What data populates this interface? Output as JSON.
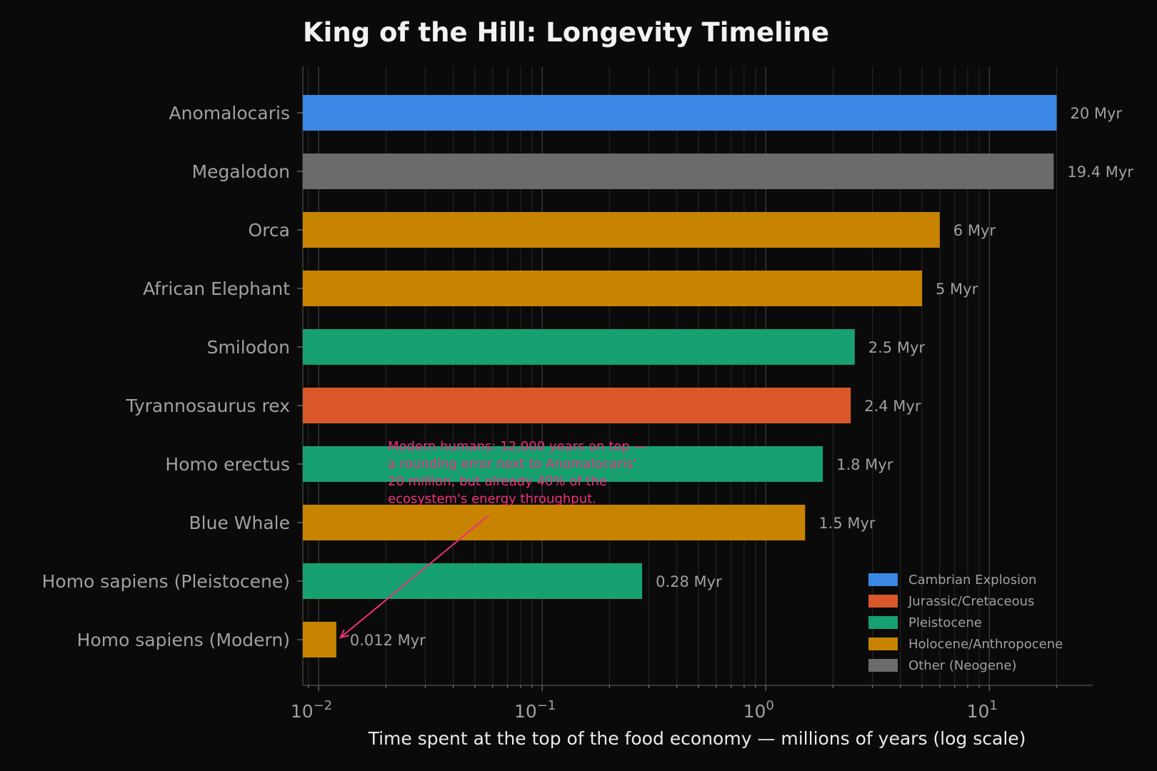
{
  "chart_data": {
    "type": "bar",
    "orientation": "horizontal",
    "title": "King of the Hill: Longevity Timeline",
    "xlabel": "Time spent at the top of the food economy — millions of years (log scale)",
    "ylabel": "",
    "x_scale": "log",
    "xlim": [
      0.0085,
      29
    ],
    "grid": true,
    "legend_position": "bottom-right",
    "categories": [
      "Anomalocaris",
      "Megalodon",
      "Orca",
      "African Elephant",
      "Smilodon",
      "Tyrannosaurus rex",
      "Homo erectus",
      "Blue Whale",
      "Homo sapiens (Pleistocene)",
      "Homo sapiens (Modern)"
    ],
    "values": [
      20,
      19.4,
      6,
      5,
      2.5,
      2.4,
      1.8,
      1.5,
      0.28,
      0.012
    ],
    "value_labels": [
      "20 Myr",
      "19.4 Myr",
      "6 Myr",
      "5 Myr",
      "2.5 Myr",
      "2.4 Myr",
      "1.8 Myr",
      "1.5 Myr",
      "0.28 Myr",
      "0.012 Myr"
    ],
    "bar_groups": [
      "Cambrian Explosion",
      "Other (Neogene)",
      "Holocene/Anthropocene",
      "Holocene/Anthropocene",
      "Pleistocene",
      "Jurassic/Cretaceous",
      "Pleistocene",
      "Holocene/Anthropocene",
      "Pleistocene",
      "Holocene/Anthropocene"
    ],
    "legend": [
      {
        "name": "Cambrian Explosion",
        "color": "#3a88e4"
      },
      {
        "name": "Jurassic/Cretaceous",
        "color": "#d95728"
      },
      {
        "name": "Pleistocene",
        "color": "#17a070"
      },
      {
        "name": "Holocene/Anthropocene",
        "color": "#c88400"
      },
      {
        "name": "Other (Neogene)",
        "color": "#6b6b6b"
      }
    ],
    "x_ticks": [
      {
        "value": 0.01,
        "base": "10",
        "exp": "−2"
      },
      {
        "value": 0.1,
        "base": "10",
        "exp": "−1"
      },
      {
        "value": 1,
        "base": "10",
        "exp": "0"
      },
      {
        "value": 10,
        "base": "10",
        "exp": "1"
      }
    ],
    "annotation": {
      "lines": [
        "Modern humans: 12,000 years on top —",
        "a rounding error next to Anomalocaris'",
        "20 million, but already 40% of the",
        "ecosystem's energy throughput."
      ],
      "color": "#f0307c",
      "points_to": "Homo sapiens (Modern)"
    }
  }
}
